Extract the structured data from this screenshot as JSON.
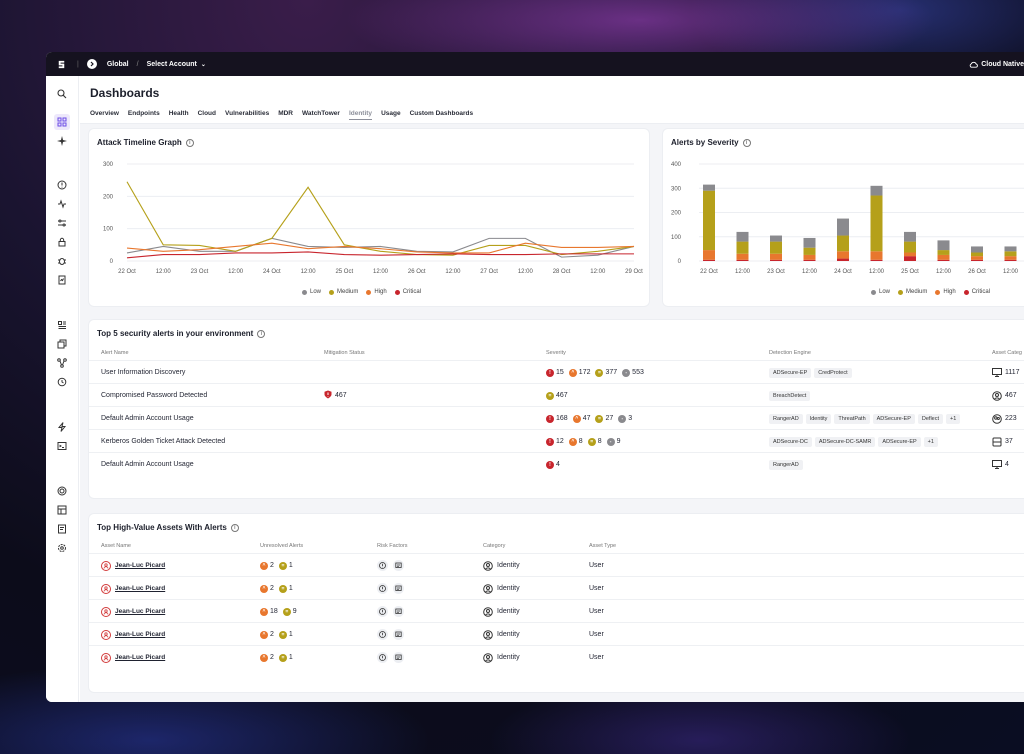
{
  "topbar": {
    "scope": "Global",
    "account": "Select Account",
    "right_label": "Cloud Native"
  },
  "header": {
    "title": "Dashboards",
    "tabs": [
      "Overview",
      "Endpoints",
      "Health",
      "Cloud",
      "Vulnerabilities",
      "MDR",
      "WatchTower",
      "Identity",
      "Usage",
      "Custom Dashboards"
    ],
    "active_tab": "Identity"
  },
  "colors": {
    "low": "#8a8a8e",
    "medium": "#b5a01a",
    "high": "#e8772e",
    "critical": "#c8252d",
    "accent": "#6b4ce6"
  },
  "timeline": {
    "title": "Attack Timeline Graph",
    "legend": [
      "Low",
      "Medium",
      "High",
      "Critical"
    ]
  },
  "severity_chart": {
    "title": "Alerts by Severity",
    "legend": [
      "Low",
      "Medium",
      "High",
      "Critical"
    ]
  },
  "chart_data": [
    {
      "type": "line",
      "title": "Attack Timeline Graph",
      "x": [
        "22 Oct",
        "12:00",
        "23 Oct",
        "12:00",
        "24 Oct",
        "12:00",
        "25 Oct",
        "12:00",
        "26 Oct",
        "12:00",
        "27 Oct",
        "12:00",
        "28 Oct",
        "12:00",
        "29 Oct"
      ],
      "ylim": [
        0,
        300
      ],
      "yticks": [
        0,
        100,
        200,
        300
      ],
      "grid": true,
      "legend_position": "bottom",
      "series": [
        {
          "name": "Low",
          "values": [
            25,
            45,
            30,
            30,
            70,
            45,
            42,
            45,
            30,
            28,
            70,
            70,
            12,
            18,
            45
          ]
        },
        {
          "name": "Medium",
          "values": [
            245,
            50,
            48,
            30,
            70,
            228,
            50,
            30,
            20,
            18,
            48,
            48,
            20,
            30,
            45
          ]
        },
        {
          "name": "High",
          "values": [
            40,
            30,
            35,
            45,
            55,
            38,
            45,
            38,
            28,
            25,
            25,
            55,
            42,
            42,
            45
          ]
        },
        {
          "name": "Critical",
          "values": [
            10,
            20,
            20,
            25,
            25,
            28,
            20,
            18,
            20,
            22,
            20,
            20,
            22,
            22,
            22
          ]
        }
      ]
    },
    {
      "type": "bar",
      "title": "Alerts by Severity",
      "categories": [
        "22 Oct",
        "12:00",
        "23 Oct",
        "12:00",
        "24 Oct",
        "12:00",
        "25 Oct",
        "12:00",
        "26 Oct",
        "12:00"
      ],
      "ylim": [
        0,
        400
      ],
      "yticks": [
        0,
        100,
        200,
        300,
        400
      ],
      "stacked": true,
      "legend_position": "bottom",
      "series": [
        {
          "name": "Critical",
          "values": [
            5,
            5,
            5,
            5,
            10,
            5,
            20,
            5,
            5,
            5
          ]
        },
        {
          "name": "High",
          "values": [
            40,
            25,
            25,
            20,
            30,
            35,
            15,
            20,
            15,
            15
          ]
        },
        {
          "name": "Medium",
          "values": [
            245,
            50,
            50,
            30,
            65,
            230,
            45,
            20,
            15,
            20
          ]
        },
        {
          "name": "Low",
          "values": [
            25,
            40,
            25,
            40,
            70,
            40,
            40,
            40,
            25,
            20
          ]
        }
      ]
    }
  ],
  "alerts": {
    "title": "Top 5 security alerts in your environment",
    "columns": [
      "Alert Name",
      "Mitigation Status",
      "Severity",
      "Detection Engine",
      "Asset Categ"
    ],
    "rows": [
      {
        "name": "User Information Discovery",
        "mitigation": "",
        "severity": [
          [
            "critical",
            "15"
          ],
          [
            "high",
            "172"
          ],
          [
            "medium",
            "377"
          ],
          [
            "low",
            "553"
          ]
        ],
        "engines": [
          "ADSecure-EP",
          "CredProtect"
        ],
        "asset_icon": "monitor-icon",
        "asset_count": "1117"
      },
      {
        "name": "Compromised Password Detected",
        "mitigation": "467",
        "severity": [
          [
            "medium",
            "467"
          ]
        ],
        "engines": [
          "BreachDetect"
        ],
        "asset_icon": "user-icon",
        "asset_count": "467"
      },
      {
        "name": "Default Admin Account Usage",
        "mitigation": "",
        "severity": [
          [
            "critical",
            "168"
          ],
          [
            "high",
            "47"
          ],
          [
            "medium",
            "27"
          ],
          [
            "low",
            "3"
          ]
        ],
        "engines": [
          "RangerAD",
          "Identity",
          "ThreatPath",
          "ADSecure-EP",
          "Deflect",
          "+1"
        ],
        "asset_icon": "users-icon",
        "asset_count": "223"
      },
      {
        "name": "Kerberos Golden Ticket Attack Detected",
        "mitigation": "",
        "severity": [
          [
            "critical",
            "12"
          ],
          [
            "high",
            "8"
          ],
          [
            "medium",
            "8"
          ],
          [
            "low",
            "9"
          ]
        ],
        "engines": [
          "ADSecure-DC",
          "ADSecure-DC-SAMR",
          "ADSecure-EP",
          "+1"
        ],
        "asset_icon": "server-icon",
        "asset_count": "37"
      },
      {
        "name": "Default Admin Account Usage",
        "mitigation": "",
        "severity": [
          [
            "critical",
            "4"
          ]
        ],
        "engines": [
          "RangerAD"
        ],
        "asset_icon": "monitor-icon",
        "asset_count": "4"
      }
    ]
  },
  "assets": {
    "title": "Top High-Value Assets With Alerts",
    "columns": [
      "Asset Name",
      "Unresolved Alerts",
      "Risk Factors",
      "Category",
      "Asset Type"
    ],
    "rows": [
      {
        "name": "Jean-Luc Picard",
        "alerts": [
          [
            "high",
            "2"
          ],
          [
            "medium",
            "1"
          ]
        ],
        "category": "Identity",
        "type": "User"
      },
      {
        "name": "Jean-Luc Picard",
        "alerts": [
          [
            "high",
            "2"
          ],
          [
            "medium",
            "1"
          ]
        ],
        "category": "Identity",
        "type": "User"
      },
      {
        "name": "Jean-Luc Picard",
        "alerts": [
          [
            "high",
            "18"
          ],
          [
            "medium",
            "9"
          ]
        ],
        "category": "Identity",
        "type": "User"
      },
      {
        "name": "Jean-Luc Picard",
        "alerts": [
          [
            "high",
            "2"
          ],
          [
            "medium",
            "1"
          ]
        ],
        "category": "Identity",
        "type": "User"
      },
      {
        "name": "Jean-Luc Picard",
        "alerts": [
          [
            "high",
            "2"
          ],
          [
            "medium",
            "1"
          ]
        ],
        "category": "Identity",
        "type": "User"
      }
    ]
  }
}
